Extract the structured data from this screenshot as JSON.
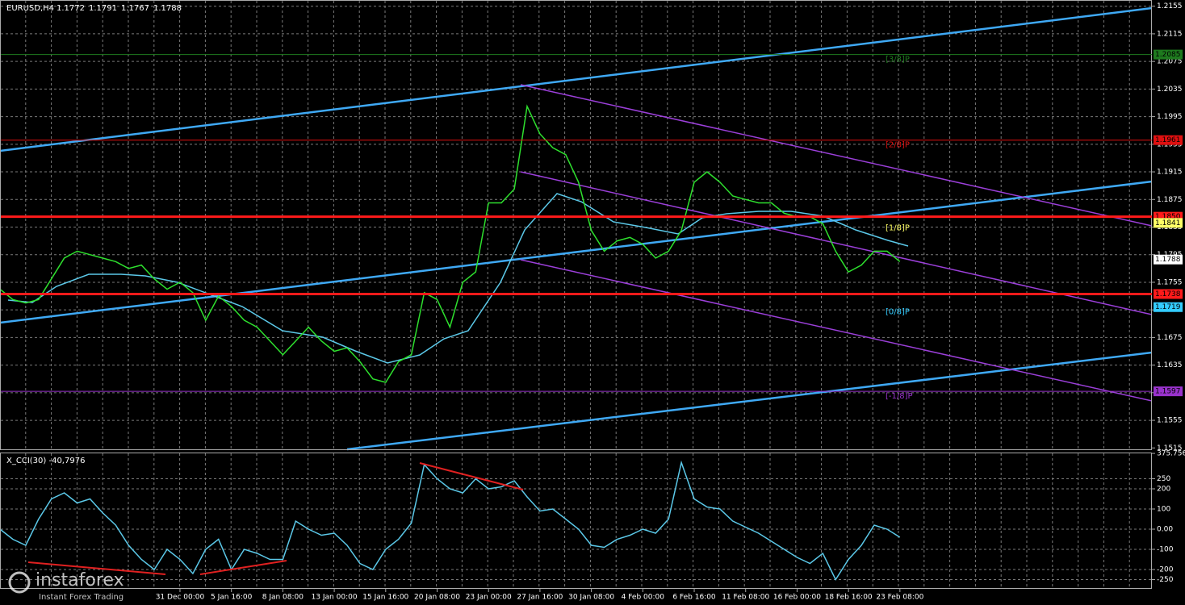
{
  "chart_data": [
    {
      "type": "line",
      "title": "EURUSD,H4",
      "ohlc": [
        1.1772,
        1.1791,
        1.1767,
        1.1788
      ],
      "x": [
        0,
        1,
        2,
        3,
        4,
        5,
        6,
        7,
        8,
        9,
        10,
        11,
        12,
        13,
        14,
        15,
        16,
        17,
        18,
        19,
        20,
        21,
        22,
        23,
        24,
        25,
        26,
        27,
        28,
        29,
        30,
        31,
        32,
        33,
        34,
        35,
        36,
        37,
        38,
        39,
        40,
        41,
        42,
        43,
        44,
        45,
        46,
        47,
        48,
        49,
        50,
        51,
        52,
        53,
        54,
        55,
        56,
        57,
        58,
        59,
        60,
        61,
        62,
        63,
        64,
        65,
        66,
        67,
        68,
        69,
        70
      ],
      "series": [
        {
          "name": "EURUSD",
          "color": "#2ee02e",
          "values": [
            1.1745,
            1.173,
            1.1725,
            1.173,
            1.176,
            1.179,
            1.18,
            1.1795,
            1.179,
            1.1785,
            1.1775,
            1.178,
            1.176,
            1.1745,
            1.1755,
            1.174,
            1.17,
            1.1735,
            1.172,
            1.17,
            1.169,
            1.167,
            1.165,
            1.167,
            1.169,
            1.167,
            1.1655,
            1.166,
            1.164,
            1.1615,
            1.161,
            1.164,
            1.165,
            1.174,
            1.173,
            1.169,
            1.1755,
            1.177,
            1.187,
            1.187,
            1.189,
            1.201,
            1.197,
            1.195,
            1.194,
            1.19,
            1.183,
            1.18,
            1.1815,
            1.182,
            1.181,
            1.179,
            1.18,
            1.183,
            1.19,
            1.1915,
            1.19,
            1.188,
            1.1875,
            1.187,
            1.187,
            1.1855,
            1.185,
            1.185,
            1.184,
            1.18,
            1.177,
            1.178,
            1.18,
            1.18,
            1.1785
          ]
        }
      ],
      "xlim": [
        0,
        89.6
      ],
      "ylim": [
        1.1513,
        1.2164
      ],
      "yticks": [
        1.2155,
        1.2115,
        1.2075,
        1.2035,
        1.1995,
        1.1955,
        1.1915,
        1.1875,
        1.1835,
        1.1795,
        1.1755,
        1.1715,
        1.1675,
        1.1635,
        1.1595,
        1.1555,
        1.1515
      ],
      "xticks": [
        {
          "value": 14,
          "label": "31 Dec 00:00"
        },
        {
          "value": 18,
          "label": "5 Jan 16:00"
        },
        {
          "value": 22,
          "label": "8 Jan 08:00"
        },
        {
          "value": 26,
          "label": "13 Jan 00:00"
        },
        {
          "value": 30,
          "label": "15 Jan 16:00"
        },
        {
          "value": 34,
          "label": "20 Jan 08:00"
        },
        {
          "value": 38,
          "label": "23 Jan 00:00"
        },
        {
          "value": 42,
          "label": "27 Jan 16:00"
        },
        {
          "value": 46,
          "label": "30 Jan 08:00"
        },
        {
          "value": 50,
          "label": "4 Feb 00:00"
        },
        {
          "value": 54,
          "label": "6 Feb 16:00"
        },
        {
          "value": 58,
          "label": "11 Feb 08:00"
        },
        {
          "value": 62,
          "label": "16 Feb 00:00"
        },
        {
          "value": 66,
          "label": "18 Feb 16:00"
        },
        {
          "value": 70,
          "label": "23 Feb 08:00"
        }
      ],
      "levels": [
        {
          "value": 1.2085,
          "label": "1.2085",
          "tag": "[3/8]P",
          "color": "#1e7a1e",
          "line": true
        },
        {
          "value": 1.1961,
          "label": "1.1961",
          "tag": "[2/8]P",
          "color": "#e01010",
          "line": true
        },
        {
          "value": 1.185,
          "label": "1.1850",
          "color": "#ff1a1a",
          "line": true,
          "thick": true
        },
        {
          "value": 1.1841,
          "label": "1.1841",
          "tag": "[1/8]P",
          "color": "#ffff66",
          "line": false
        },
        {
          "value": 1.1788,
          "label": "1.1788",
          "color": "#ffffff",
          "line": false
        },
        {
          "value": 1.1738,
          "label": "1.1738",
          "color": "#ff1a1a",
          "line": true,
          "thick": true
        },
        {
          "value": 1.1719,
          "label": "1.1719",
          "tag": "[0/8]P",
          "color": "#33ccff",
          "line": false
        },
        {
          "value": 1.1597,
          "label": "1.1597",
          "tag": "[-1/8]P",
          "color": "#9933cc",
          "line": true
        }
      ]
    },
    {
      "type": "line",
      "title": "X_CCI(30) -40,7976",
      "x": [
        0,
        1,
        2,
        3,
        4,
        5,
        6,
        7,
        8,
        9,
        10,
        11,
        12,
        13,
        14,
        15,
        16,
        17,
        18,
        19,
        20,
        21,
        22,
        23,
        24,
        25,
        26,
        27,
        28,
        29,
        30,
        31,
        32,
        33,
        34,
        35,
        36,
        37,
        38,
        39,
        40,
        41,
        42,
        43,
        44,
        45,
        46,
        47,
        48,
        49,
        50,
        51,
        52,
        53,
        54,
        55,
        56,
        57,
        58,
        59,
        60,
        61,
        62,
        63,
        64,
        65,
        66,
        67,
        68,
        69,
        70
      ],
      "series": [
        {
          "name": "X_CCI(30)",
          "color": "#5bc8e8",
          "values": [
            0,
            -50,
            -80,
            50,
            150,
            180,
            130,
            150,
            80,
            20,
            -80,
            -150,
            -200,
            -100,
            -150,
            -220,
            -100,
            -50,
            -200,
            -100,
            -120,
            -150,
            -150,
            40,
            0,
            -30,
            -20,
            -80,
            -170,
            -200,
            -100,
            -50,
            30,
            320,
            250,
            200,
            180,
            250,
            200,
            210,
            240,
            160,
            90,
            100,
            50,
            0,
            -80,
            -90,
            -50,
            -30,
            0,
            -20,
            50,
            330,
            150,
            110,
            100,
            40,
            10,
            -20,
            -60,
            -100,
            -140,
            -170,
            -120,
            -250,
            -150,
            -80,
            20,
            0,
            -40
          ]
        }
      ],
      "xlim": [
        0,
        89.6
      ],
      "ylim": [
        -296,
        376
      ],
      "yticks": [
        375.7568,
        250,
        200,
        100,
        {
          "value": 0,
          "label": "0.00"
        },
        -100,
        -200,
        -250
      ]
    }
  ],
  "logo": {
    "name": "instaforex",
    "slogan": "Instant Forex Trading"
  }
}
